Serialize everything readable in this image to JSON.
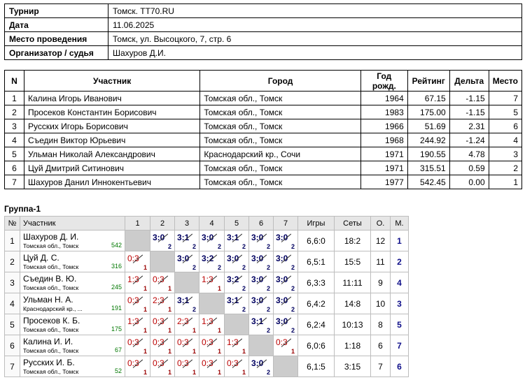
{
  "info": [
    {
      "key": "Турнир",
      "value": "Томск. TT70.RU"
    },
    {
      "key": "Дата",
      "value": "11.06.2025"
    },
    {
      "key": "Место проведения",
      "value": "Томск, ул. Высоцкого, 7, стр. 6"
    },
    {
      "key": "Организатор / судья",
      "value": "Шахуров Д.И."
    }
  ],
  "players_headers": [
    "N",
    "Участник",
    "Город",
    "Год рожд.",
    "Рейтинг",
    "Дельта",
    "Место"
  ],
  "players": [
    {
      "n": "1",
      "name": "Калина Игорь Иванович",
      "city": "Томская обл., Томск",
      "year": "1964",
      "rating": "67.15",
      "delta": "-1.15",
      "place": "7"
    },
    {
      "n": "2",
      "name": "Просеков Константин Борисович",
      "city": "Томская обл., Томск",
      "year": "1983",
      "rating": "175.00",
      "delta": "-1.15",
      "place": "5"
    },
    {
      "n": "3",
      "name": "Русских Игорь Борисович",
      "city": "Томская обл., Томск",
      "year": "1966",
      "rating": "51.69",
      "delta": "2.31",
      "place": "6"
    },
    {
      "n": "4",
      "name": "Съедин Виктор Юрьевич",
      "city": "Томская обл., Томск",
      "year": "1968",
      "rating": "244.92",
      "delta": "-1.24",
      "place": "4"
    },
    {
      "n": "5",
      "name": "Ульман Николай Александрович",
      "city": "Краснодарский кр., Сочи",
      "year": "1971",
      "rating": "190.55",
      "delta": "4.78",
      "place": "3"
    },
    {
      "n": "6",
      "name": "Цуй Дмитрий Ситинович",
      "city": "Томская обл., Томск",
      "year": "1971",
      "rating": "315.51",
      "delta": "0.59",
      "place": "2"
    },
    {
      "n": "7",
      "name": "Шахуров Данил Иннокентьевич",
      "city": "Томская обл., Томск",
      "year": "1977",
      "rating": "542.45",
      "delta": "0.00",
      "place": "1"
    }
  ],
  "group": {
    "title": "Группа-1",
    "headers": {
      "n": "№",
      "player": "Участник",
      "cols": [
        "1",
        "2",
        "3",
        "4",
        "5",
        "6",
        "7"
      ],
      "games": "Игры",
      "sets": "Сеты",
      "points": "О.",
      "place": "М."
    },
    "rows": [
      {
        "n": "1",
        "name": "Шахуров Д. И.",
        "city": "Томская обл., Томск",
        "rating": "542",
        "cells": [
          null,
          {
            "s": "3:0",
            "p": "2",
            "w": true
          },
          {
            "s": "3:1",
            "p": "2",
            "w": true
          },
          {
            "s": "3:0",
            "p": "2",
            "w": true
          },
          {
            "s": "3:1",
            "p": "2",
            "w": true
          },
          {
            "s": "3:0",
            "p": "2",
            "w": true
          },
          {
            "s": "3:0",
            "p": "2",
            "w": true
          }
        ],
        "games": "6,6:0",
        "sets": "18:2",
        "points": "12",
        "place": "1"
      },
      {
        "n": "2",
        "name": "Цуй Д. С.",
        "city": "Томская обл., Томск",
        "rating": "316",
        "cells": [
          {
            "s": "0:3",
            "p": "1",
            "w": false
          },
          null,
          {
            "s": "3:0",
            "p": "2",
            "w": true
          },
          {
            "s": "3:2",
            "p": "2",
            "w": true
          },
          {
            "s": "3:0",
            "p": "2",
            "w": true
          },
          {
            "s": "3:0",
            "p": "2",
            "w": true
          },
          {
            "s": "3:0",
            "p": "2",
            "w": true
          }
        ],
        "games": "6,5:1",
        "sets": "15:5",
        "points": "11",
        "place": "2"
      },
      {
        "n": "3",
        "name": "Съедин В. Ю.",
        "city": "Томская обл., Томск",
        "rating": "245",
        "cells": [
          {
            "s": "1:3",
            "p": "1",
            "w": false
          },
          {
            "s": "0:3",
            "p": "1",
            "w": false
          },
          null,
          {
            "s": "1:3",
            "p": "1",
            "w": false
          },
          {
            "s": "3:2",
            "p": "2",
            "w": true
          },
          {
            "s": "3:0",
            "p": "2",
            "w": true
          },
          {
            "s": "3:0",
            "p": "2",
            "w": true
          }
        ],
        "games": "6,3:3",
        "sets": "11:11",
        "points": "9",
        "place": "4"
      },
      {
        "n": "4",
        "name": "Ульман Н. А.",
        "city": "Краснодарский кр., ...",
        "rating": "191",
        "cells": [
          {
            "s": "0:3",
            "p": "1",
            "w": false
          },
          {
            "s": "2:3",
            "p": "1",
            "w": false
          },
          {
            "s": "3:1",
            "p": "2",
            "w": true
          },
          null,
          {
            "s": "3:1",
            "p": "2",
            "w": true
          },
          {
            "s": "3:0",
            "p": "2",
            "w": true
          },
          {
            "s": "3:0",
            "p": "2",
            "w": true
          }
        ],
        "games": "6,4:2",
        "sets": "14:8",
        "points": "10",
        "place": "3"
      },
      {
        "n": "5",
        "name": "Просеков К. Б.",
        "city": "Томская обл., Томск",
        "rating": "175",
        "cells": [
          {
            "s": "1:3",
            "p": "1",
            "w": false
          },
          {
            "s": "0:3",
            "p": "1",
            "w": false
          },
          {
            "s": "2:3",
            "p": "1",
            "w": false
          },
          {
            "s": "1:3",
            "p": "1",
            "w": false
          },
          null,
          {
            "s": "3:1",
            "p": "2",
            "w": true
          },
          {
            "s": "3:0",
            "p": "2",
            "w": true
          }
        ],
        "games": "6,2:4",
        "sets": "10:13",
        "points": "8",
        "place": "5"
      },
      {
        "n": "6",
        "name": "Калина И. И.",
        "city": "Томская обл., Томск",
        "rating": "67",
        "cells": [
          {
            "s": "0:3",
            "p": "1",
            "w": false
          },
          {
            "s": "0:3",
            "p": "1",
            "w": false
          },
          {
            "s": "0:3",
            "p": "1",
            "w": false
          },
          {
            "s": "0:3",
            "p": "1",
            "w": false
          },
          {
            "s": "1:3",
            "p": "1",
            "w": false
          },
          null,
          {
            "s": "0:3",
            "p": "1",
            "w": false
          }
        ],
        "games": "6,0:6",
        "sets": "1:18",
        "points": "6",
        "place": "7"
      },
      {
        "n": "7",
        "name": "Русских И. Б.",
        "city": "Томская обл., Томск",
        "rating": "52",
        "cells": [
          {
            "s": "0:3",
            "p": "1",
            "w": false
          },
          {
            "s": "0:3",
            "p": "1",
            "w": false
          },
          {
            "s": "0:3",
            "p": "1",
            "w": false
          },
          {
            "s": "0:3",
            "p": "1",
            "w": false
          },
          {
            "s": "0:3",
            "p": "1",
            "w": false
          },
          {
            "s": "3:0",
            "p": "2",
            "w": true
          },
          null
        ],
        "games": "6,1:5",
        "sets": "3:15",
        "points": "7",
        "place": "6"
      }
    ]
  }
}
